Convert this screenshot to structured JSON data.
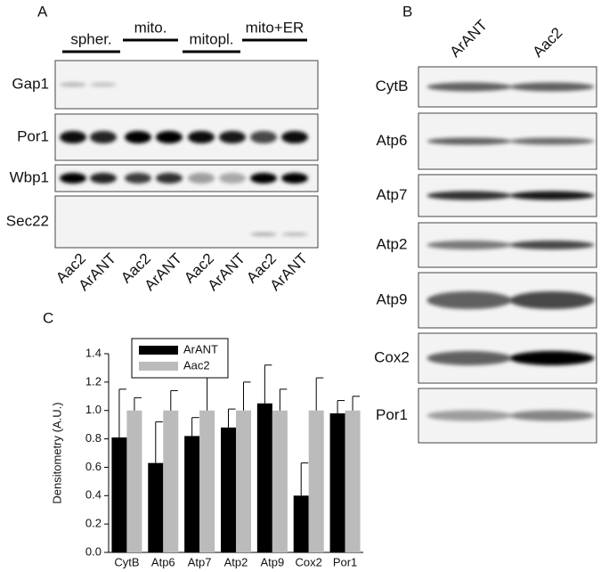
{
  "panel_a": {
    "label": "A",
    "groups": [
      "spher.",
      "mito.",
      "mitopl.",
      "mito+ER"
    ],
    "blots": [
      "Gap1",
      "Por1",
      "Wbp1",
      "Sec22"
    ],
    "lanes": [
      "Aac2",
      "ArANT",
      "Aac2",
      "ArANT",
      "Aac2",
      "ArANT",
      "Aac2",
      "ArANT"
    ]
  },
  "panel_b": {
    "label": "B",
    "lanes": [
      "ArANT",
      "Aac2"
    ],
    "blots": [
      "CytB",
      "Atp6",
      "Atp7",
      "Atp2",
      "Atp9",
      "Cox2",
      "Por1"
    ]
  },
  "chart_data": {
    "type": "bar",
    "label": "C",
    "ylabel": "Densitometry (A.U.)",
    "categories": [
      "CytB",
      "Atp6",
      "Atp7",
      "Atp2",
      "Atp9",
      "Cox2",
      "Por1"
    ],
    "series": [
      {
        "name": "ArANT",
        "color": "#000000",
        "values": [
          0.81,
          0.63,
          0.82,
          0.88,
          1.05,
          0.4,
          0.98
        ],
        "errors": [
          0.34,
          0.29,
          0.13,
          0.13,
          0.27,
          0.23,
          0.09
        ]
      },
      {
        "name": "Aac2",
        "color": "#bbbbbb",
        "values": [
          1.0,
          1.0,
          1.0,
          1.0,
          1.0,
          1.0,
          1.0
        ],
        "errors": [
          0.09,
          0.14,
          0.25,
          0.2,
          0.15,
          0.23,
          0.1
        ]
      }
    ],
    "ylim": [
      0,
      1.4
    ],
    "yticks": [
      {
        "value": 0,
        "label": "0.0"
      },
      0.2,
      0.4,
      0.6,
      0.8,
      {
        "value": 1,
        "label": "1.0"
      },
      1.2,
      1.4
    ],
    "legend": "upper-left"
  }
}
